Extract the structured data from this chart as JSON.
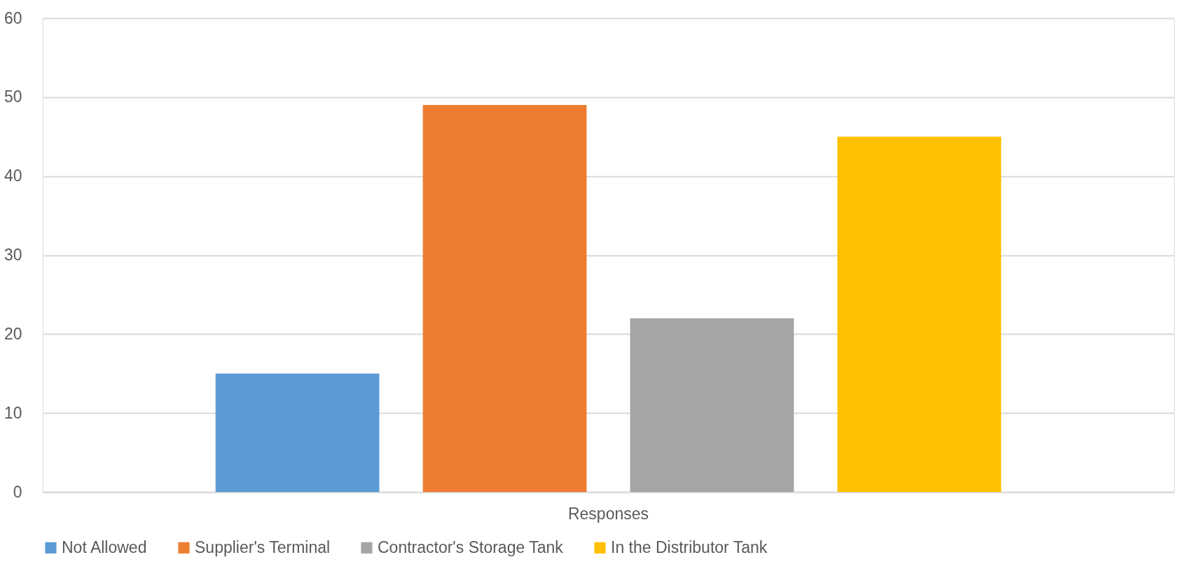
{
  "chart_data": {
    "type": "bar",
    "categories": [
      "Responses"
    ],
    "series": [
      {
        "name": "Not Allowed",
        "color": "#5b9bd5",
        "values": [
          15
        ]
      },
      {
        "name": "Supplier's Terminal",
        "color": "#ed7d31",
        "values": [
          49
        ]
      },
      {
        "name": "Contractor's Storage Tank",
        "color": "#a5a5a5",
        "values": [
          22
        ]
      },
      {
        "name": "In the Distributor Tank",
        "color": "#ffc000",
        "values": [
          45
        ]
      }
    ],
    "ylim": [
      0,
      60
    ],
    "yticks": [
      0,
      10,
      20,
      30,
      40,
      50,
      60
    ],
    "grid": "y",
    "legend": "bottom"
  }
}
